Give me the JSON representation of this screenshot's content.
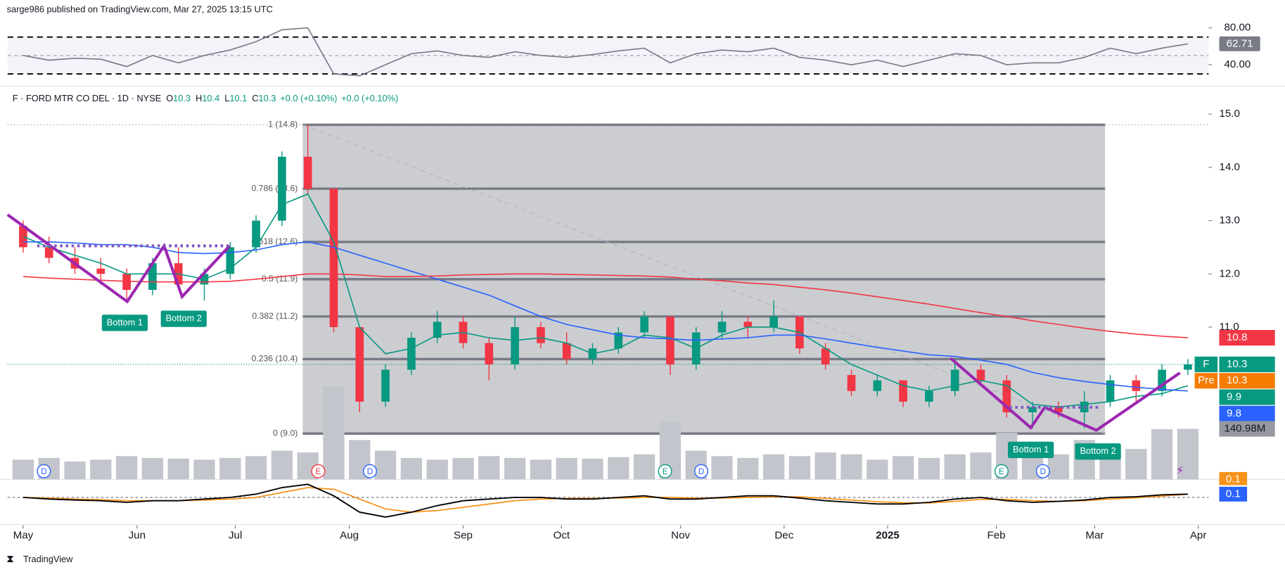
{
  "header": "sarge986 published on TradingView.com, Mar 27, 2025 13:15 UTC",
  "footer": "TradingView",
  "chart_data": {
    "type": "candlestick",
    "legend": {
      "symbol": "F · FORD MTR CO DEL · 1D · NYSE",
      "ohlc": [
        {
          "key": "O",
          "value": 10.3
        },
        {
          "key": "H",
          "value": 10.4
        },
        {
          "key": "L",
          "value": 10.1
        },
        {
          "key": "C",
          "value": 10.3
        }
      ],
      "changes": [
        "+0.0 (+0.10%)",
        "+0.0 (+0.10%)"
      ]
    },
    "ticker": "F",
    "x": [
      0,
      5,
      10,
      15,
      20,
      25,
      30,
      35,
      40,
      45,
      50,
      55,
      60,
      65,
      70,
      75,
      80,
      85,
      90,
      95,
      100,
      105,
      110,
      115,
      120,
      125,
      130,
      135,
      140,
      145,
      150,
      155,
      160,
      165,
      170,
      175,
      180,
      185,
      190,
      195,
      200,
      205,
      210,
      215,
      220,
      225
    ],
    "xlim": [
      -3,
      229
    ],
    "xticks": [
      {
        "value": 0,
        "label": "May"
      },
      {
        "value": 22,
        "label": "Jun"
      },
      {
        "value": 41,
        "label": "Jul"
      },
      {
        "value": 63,
        "label": "Aug"
      },
      {
        "value": 85,
        "label": "Sep"
      },
      {
        "value": 104,
        "label": "Oct"
      },
      {
        "value": 127,
        "label": "Nov"
      },
      {
        "value": 147,
        "label": "Dec"
      },
      {
        "value": 167,
        "label": "2025"
      },
      {
        "value": 188,
        "label": "Feb"
      },
      {
        "value": 207,
        "label": "Mar"
      },
      {
        "value": 227,
        "label": "Apr"
      }
    ],
    "open": [
      12.9,
      12.5,
      12.3,
      12.1,
      12.0,
      11.7,
      12.2,
      11.8,
      12.0,
      12.5,
      13.0,
      14.2,
      13.6,
      11.0,
      9.6,
      10.2,
      10.8,
      11.1,
      10.7,
      10.3,
      11.0,
      10.7,
      10.4,
      10.6,
      10.9,
      11.2,
      10.3,
      10.9,
      11.1,
      11.0,
      11.2,
      10.6,
      10.1,
      9.8,
      10.0,
      9.6,
      9.8,
      10.2,
      10.0,
      9.4,
      9.5,
      9.4,
      9.6,
      10.0,
      9.8,
      10.2
    ],
    "high": [
      13.0,
      12.7,
      12.5,
      12.3,
      12.1,
      12.3,
      12.5,
      12.1,
      12.6,
      13.1,
      14.3,
      14.8,
      13.6,
      11.0,
      10.3,
      10.9,
      11.3,
      11.2,
      10.8,
      11.2,
      11.1,
      10.9,
      10.7,
      11.0,
      11.3,
      11.2,
      11.0,
      11.3,
      11.2,
      11.5,
      11.2,
      10.7,
      10.2,
      10.1,
      10.0,
      9.9,
      10.4,
      10.3,
      10.1,
      9.6,
      9.6,
      9.8,
      10.1,
      10.1,
      10.3,
      10.4
    ],
    "low": [
      12.4,
      12.2,
      12.0,
      11.8,
      11.5,
      11.6,
      11.7,
      11.5,
      11.9,
      12.4,
      12.9,
      13.5,
      10.9,
      9.4,
      9.5,
      10.1,
      10.7,
      10.6,
      10.0,
      10.2,
      10.6,
      10.3,
      10.3,
      10.5,
      10.8,
      10.1,
      10.2,
      10.8,
      10.8,
      10.9,
      10.5,
      10.2,
      9.7,
      9.7,
      9.5,
      9.5,
      9.7,
      9.9,
      9.3,
      9.1,
      9.3,
      9.1,
      9.5,
      9.6,
      9.7,
      10.1
    ],
    "close": [
      12.5,
      12.3,
      12.1,
      12.0,
      11.7,
      12.2,
      11.8,
      12.0,
      12.5,
      13.0,
      14.2,
      13.6,
      11.0,
      9.6,
      10.2,
      10.8,
      11.1,
      10.7,
      10.3,
      11.0,
      10.7,
      10.4,
      10.6,
      10.9,
      11.2,
      10.3,
      10.9,
      11.1,
      11.0,
      11.2,
      10.6,
      10.3,
      9.8,
      10.0,
      9.6,
      9.8,
      10.2,
      10.0,
      9.4,
      9.5,
      9.4,
      9.6,
      10.0,
      9.8,
      10.2,
      10.3
    ],
    "up_color": "#089981",
    "down_color": "#f23645",
    "ylim": [
      8.14,
      15.42
    ],
    "yticks": [
      {
        "value": 11,
        "label": "11.0"
      },
      {
        "value": 12,
        "label": "12.0"
      },
      {
        "value": 13,
        "label": "13.0"
      },
      {
        "value": 14,
        "label": "14.0"
      },
      {
        "value": 15,
        "label": "15.0"
      }
    ],
    "lines": [
      {
        "color": "#089981",
        "values": [
          12.7,
          12.5,
          12.35,
          12.2,
          12.0,
          12.0,
          12.0,
          11.9,
          12.1,
          12.5,
          13.3,
          13.5,
          12.6,
          11.0,
          10.5,
          10.6,
          10.85,
          10.9,
          10.8,
          10.75,
          10.8,
          10.7,
          10.5,
          10.6,
          10.85,
          10.8,
          10.6,
          10.85,
          11.0,
          11.0,
          10.9,
          10.6,
          10.3,
          10.1,
          9.9,
          9.8,
          9.9,
          10.0,
          9.9,
          9.55,
          9.5,
          9.55,
          9.6,
          9.7,
          9.75,
          9.9
        ]
      },
      {
        "color": "#2962ff",
        "values": [
          12.6,
          12.6,
          12.58,
          12.55,
          12.55,
          12.5,
          12.4,
          12.38,
          12.4,
          12.45,
          12.55,
          12.6,
          12.5,
          12.35,
          12.2,
          12.05,
          11.9,
          11.75,
          11.6,
          11.4,
          11.2,
          11.05,
          10.95,
          10.85,
          10.8,
          10.78,
          10.75,
          10.78,
          10.8,
          10.85,
          10.85,
          10.78,
          10.7,
          10.62,
          10.55,
          10.48,
          10.45,
          10.38,
          10.3,
          10.15,
          10.05,
          9.98,
          9.92,
          9.87,
          9.83,
          9.8
        ]
      },
      {
        "color": "#f23645",
        "values": [
          11.95,
          11.92,
          11.9,
          11.88,
          11.86,
          11.85,
          11.85,
          11.85,
          11.86,
          11.9,
          11.95,
          12.0,
          12.0,
          11.98,
          11.95,
          11.95,
          11.96,
          11.98,
          11.99,
          12.0,
          12.0,
          11.99,
          11.98,
          11.97,
          11.96,
          11.94,
          11.9,
          11.87,
          11.83,
          11.8,
          11.75,
          11.7,
          11.64,
          11.57,
          11.5,
          11.43,
          11.35,
          11.27,
          11.2,
          11.12,
          11.05,
          10.98,
          10.92,
          10.87,
          10.83,
          10.8
        ]
      }
    ],
    "premarket": {
      "label": "Pre",
      "value": 10.3,
      "color": "#f57c00"
    },
    "fib": {
      "start": 54,
      "end": 209,
      "levels": [
        {
          "label": "1 (14.8)",
          "value": 14.8
        },
        {
          "label": "0.786 (13.6)",
          "value": 13.6
        },
        {
          "label": "0.618 (12.6)",
          "value": 12.6
        },
        {
          "label": "0.5 (11.9)",
          "value": 11.9
        },
        {
          "label": "0.382 (11.2)",
          "value": 11.2
        },
        {
          "label": "0.236 (10.4)",
          "value": 10.4
        },
        {
          "label": "0 (9.0)",
          "value": 9.0
        }
      ]
    },
    "volume": {
      "color": "#c3c5cc",
      "ylim": [
        0,
        320
      ],
      "tag_label": "140.98M",
      "values": [
        55,
        60,
        50,
        55,
        65,
        60,
        58,
        55,
        60,
        65,
        80,
        75,
        260,
        110,
        80,
        60,
        55,
        60,
        65,
        60,
        55,
        60,
        58,
        62,
        70,
        160,
        80,
        65,
        60,
        70,
        65,
        75,
        70,
        55,
        65,
        60,
        70,
        75,
        130,
        80,
        70,
        110,
        90,
        85,
        140,
        140.98
      ]
    },
    "patterns": [
      "Bottom 1",
      "Bottom 2",
      "Bottom 1",
      "Bottom 2"
    ],
    "events": [
      {
        "text": "D",
        "x": 4,
        "color": "#2962ff"
      },
      {
        "text": "E",
        "x": 57,
        "color": "#f23645"
      },
      {
        "text": "D",
        "x": 67,
        "color": "#2962ff"
      },
      {
        "text": "E",
        "x": 124,
        "color": "#089981"
      },
      {
        "text": "D",
        "x": 131,
        "color": "#2962ff"
      },
      {
        "text": "E",
        "x": 189,
        "color": "#089981"
      },
      {
        "text": "D",
        "x": 197,
        "color": "#2962ff"
      }
    ],
    "rsi": {
      "color": "#787b86",
      "ylim": [
        21.3,
        90.7
      ],
      "bands": [
        30,
        70
      ],
      "yticks": [
        {
          "value": 40,
          "label": "40.00"
        },
        {
          "value": 80,
          "label": "80.00"
        }
      ],
      "values": [
        50,
        45,
        47,
        46,
        38,
        50,
        42,
        50,
        56,
        65,
        78,
        80,
        30,
        28,
        40,
        52,
        55,
        50,
        48,
        54,
        50,
        48,
        51,
        55,
        58,
        42,
        52,
        56,
        54,
        58,
        48,
        45,
        40,
        45,
        38,
        45,
        52,
        50,
        40,
        42,
        42,
        48,
        58,
        52,
        58,
        62.71
      ]
    },
    "macd": {
      "ylim": [
        -0.75,
        0.475
      ],
      "macd_color": "#000000",
      "signal_color": "#f7931a",
      "tag_color": "#2962ff",
      "macd": [
        0,
        -0.05,
        -0.08,
        -0.1,
        -0.15,
        -0.1,
        -0.1,
        -0.05,
        0,
        0.1,
        0.3,
        0.4,
        0.05,
        -0.45,
        -0.6,
        -0.45,
        -0.25,
        -0.1,
        -0.05,
        0,
        0,
        -0.05,
        -0.05,
        0,
        0.05,
        -0.05,
        -0.05,
        0,
        0.05,
        0.05,
        -0.02,
        -0.1,
        -0.15,
        -0.2,
        -0.2,
        -0.15,
        -0.05,
        0,
        -0.1,
        -0.15,
        -0.12,
        -0.08,
        0,
        0.02,
        0.08,
        0.1
      ],
      "signal": [
        0,
        -0.02,
        -0.05,
        -0.07,
        -0.1,
        -0.1,
        -0.1,
        -0.08,
        -0.05,
        0,
        0.15,
        0.3,
        0.25,
        -0.05,
        -0.35,
        -0.45,
        -0.4,
        -0.3,
        -0.2,
        -0.1,
        -0.05,
        -0.03,
        -0.03,
        -0.02,
        0,
        0,
        -0.02,
        -0.02,
        0,
        0.02,
        0.02,
        -0.03,
        -0.08,
        -0.13,
        -0.16,
        -0.17,
        -0.12,
        -0.06,
        -0.06,
        -0.1,
        -0.12,
        -0.1,
        -0.05,
        -0.01,
        0.04,
        0.1
      ]
    }
  }
}
